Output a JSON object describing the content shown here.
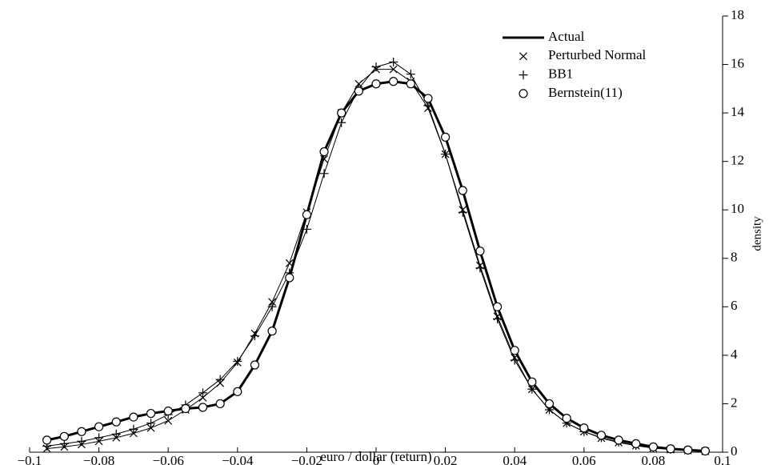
{
  "chart_data": {
    "type": "line",
    "xlabel": "euro / dollar (return)",
    "ylabel": "density",
    "y_axis_side": "right",
    "legend": "upper right",
    "x": [
      -0.095,
      -0.09,
      -0.085,
      -0.08,
      -0.075,
      -0.07,
      -0.065,
      -0.06,
      -0.055,
      -0.05,
      -0.045,
      -0.04,
      -0.035,
      -0.03,
      -0.025,
      -0.02,
      -0.015,
      -0.01,
      -0.005,
      0,
      0.005,
      0.01,
      0.015,
      0.02,
      0.025,
      0.03,
      0.035,
      0.04,
      0.045,
      0.05,
      0.055,
      0.06,
      0.065,
      0.07,
      0.075,
      0.08,
      0.085,
      0.09,
      0.095
    ],
    "series": [
      {
        "name": "Actual",
        "color": "#000000",
        "linewidth": 3,
        "marker": "none",
        "values": [
          0.5,
          0.65,
          0.85,
          1.05,
          1.25,
          1.45,
          1.6,
          1.7,
          1.8,
          1.85,
          2.0,
          2.5,
          3.6,
          5.0,
          7.2,
          9.8,
          12.4,
          14.0,
          14.9,
          15.2,
          15.3,
          15.2,
          14.6,
          13.0,
          10.8,
          8.3,
          6.0,
          4.2,
          2.9,
          2.0,
          1.4,
          1.0,
          0.7,
          0.5,
          0.35,
          0.22,
          0.14,
          0.09,
          0.05
        ]
      },
      {
        "name": "Perturbed Normal",
        "color": "#000000",
        "linewidth": 1,
        "marker": "x",
        "values": [
          0.15,
          0.22,
          0.32,
          0.45,
          0.6,
          0.78,
          1.0,
          1.3,
          1.75,
          2.25,
          2.85,
          3.7,
          4.9,
          6.2,
          7.8,
          9.9,
          12.1,
          14.0,
          15.2,
          15.8,
          15.8,
          15.3,
          14.2,
          12.3,
          10.0,
          7.7,
          5.6,
          3.9,
          2.6,
          1.75,
          1.2,
          0.85,
          0.58,
          0.4,
          0.27,
          0.17,
          0.11,
          0.07,
          0.04
        ]
      },
      {
        "name": "BB1",
        "color": "#000000",
        "linewidth": 1,
        "marker": "+",
        "values": [
          0.25,
          0.35,
          0.45,
          0.6,
          0.75,
          0.95,
          1.2,
          1.55,
          1.95,
          2.45,
          3.0,
          3.75,
          4.8,
          6.0,
          7.4,
          9.2,
          11.5,
          13.6,
          15.0,
          15.9,
          16.1,
          15.6,
          14.3,
          12.3,
          9.9,
          7.6,
          5.5,
          3.8,
          2.6,
          1.75,
          1.2,
          0.85,
          0.6,
          0.42,
          0.28,
          0.18,
          0.12,
          0.08,
          0.05
        ]
      },
      {
        "name": "Bernstein(11)",
        "color": "#000000",
        "linewidth": 0,
        "marker": "o",
        "values": [
          0.5,
          0.65,
          0.85,
          1.05,
          1.25,
          1.45,
          1.6,
          1.7,
          1.8,
          1.85,
          2.0,
          2.5,
          3.6,
          5.0,
          7.2,
          9.8,
          12.4,
          14.0,
          14.9,
          15.2,
          15.3,
          15.2,
          14.6,
          13.0,
          10.8,
          8.3,
          6.0,
          4.2,
          2.9,
          2.0,
          1.4,
          1.0,
          0.7,
          0.5,
          0.35,
          0.22,
          0.14,
          0.09,
          0.05
        ]
      }
    ],
    "xlim": [
      -0.1,
      0.1
    ],
    "xticks": [
      {
        "value": -0.1,
        "label": "−0.1"
      },
      {
        "value": -0.08,
        "label": "−0.08"
      },
      {
        "value": -0.06,
        "label": "−0.06"
      },
      {
        "value": -0.04,
        "label": "−0.04"
      },
      {
        "value": -0.02,
        "label": "−0.02"
      },
      0,
      0.02,
      0.04,
      0.06,
      0.08,
      0.1
    ],
    "ylim": [
      0,
      18
    ],
    "yticks": [
      0,
      2,
      4,
      6,
      8,
      10,
      12,
      14,
      16,
      18
    ]
  }
}
